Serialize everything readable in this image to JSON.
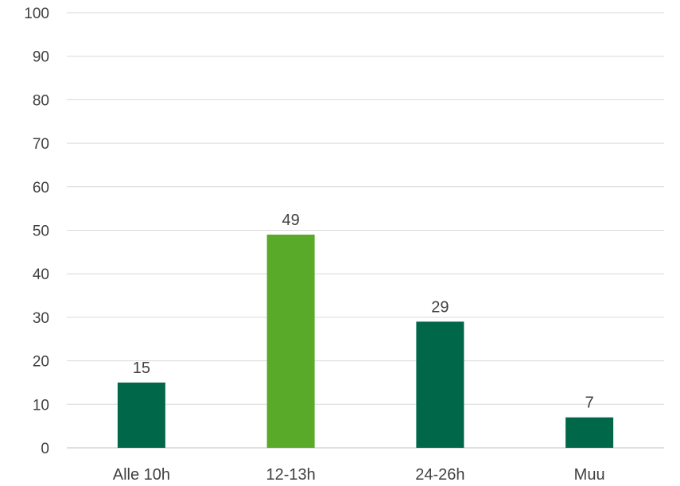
{
  "chart_data": {
    "type": "bar",
    "title": "",
    "xlabel": "",
    "ylabel": "",
    "categories": [
      "Alle 10h",
      "12-13h",
      "24-26h",
      "Muu"
    ],
    "values": [
      15,
      49,
      29,
      7
    ],
    "data_labels": [
      "15",
      "49",
      "29",
      "7"
    ],
    "yticks": [
      0,
      10,
      20,
      30,
      40,
      50,
      60,
      70,
      80,
      90,
      100
    ],
    "ylim": [
      0,
      100
    ],
    "grid": true,
    "legend": "none",
    "colors": [
      "#006848",
      "#5aaa2a",
      "#006848",
      "#006848"
    ]
  }
}
